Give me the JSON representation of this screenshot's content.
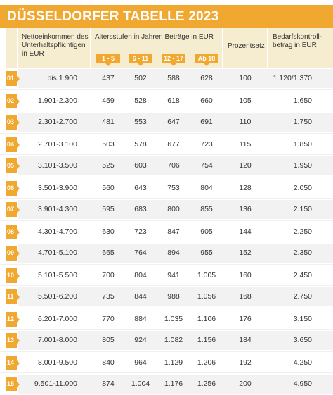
{
  "title": "DÜSSELDORFER TABELLE 2023",
  "header": {
    "income": "Nettoeinkommen des Unterhaltspflichtigen in EUR",
    "age_groups": "Altersstufen in Jahren Beträge in EUR",
    "ages": [
      "1 - 5",
      "6 - 11",
      "12 - 17",
      "Ab 18"
    ],
    "percent": "Prozentsatz",
    "requirement": "Bedarfskontroll-betrag in EUR"
  },
  "rows": [
    {
      "idx": "01",
      "income": "bis 1.900",
      "a1": "437",
      "a2": "502",
      "a3": "588",
      "a4": "628",
      "pct": "100",
      "req": "1.120/1.370"
    },
    {
      "idx": "02",
      "income": "1.901-2.300",
      "a1": "459",
      "a2": "528",
      "a3": "618",
      "a4": "660",
      "pct": "105",
      "req": "1.650"
    },
    {
      "idx": "03",
      "income": "2.301-2.700",
      "a1": "481",
      "a2": "553",
      "a3": "647",
      "a4": "691",
      "pct": "110",
      "req": "1.750"
    },
    {
      "idx": "04",
      "income": "2.701-3.100",
      "a1": "503",
      "a2": "578",
      "a3": "677",
      "a4": "723",
      "pct": "115",
      "req": "1.850"
    },
    {
      "idx": "05",
      "income": "3.101-3.500",
      "a1": "525",
      "a2": "603",
      "a3": "706",
      "a4": "754",
      "pct": "120",
      "req": "1.950"
    },
    {
      "idx": "06",
      "income": "3.501-3.900",
      "a1": "560",
      "a2": "643",
      "a3": "753",
      "a4": "804",
      "pct": "128",
      "req": "2.050"
    },
    {
      "idx": "07",
      "income": "3.901-4.300",
      "a1": "595",
      "a2": "683",
      "a3": "800",
      "a4": "855",
      "pct": "136",
      "req": "2.150"
    },
    {
      "idx": "08",
      "income": "4.301-4.700",
      "a1": "630",
      "a2": "723",
      "a3": "847",
      "a4": "905",
      "pct": "144",
      "req": "2.250"
    },
    {
      "idx": "09",
      "income": "4.701-5.100",
      "a1": "665",
      "a2": "764",
      "a3": "894",
      "a4": "955",
      "pct": "152",
      "req": "2.350"
    },
    {
      "idx": "10",
      "income": "5.101-5.500",
      "a1": "700",
      "a2": "804",
      "a3": "941",
      "a4": "1.005",
      "pct": "160",
      "req": "2.450"
    },
    {
      "idx": "11",
      "income": "5.501-6.200",
      "a1": "735",
      "a2": "844",
      "a3": "988",
      "a4": "1.056",
      "pct": "168",
      "req": "2.750"
    },
    {
      "idx": "12",
      "income": "6.201-7.000",
      "a1": "770",
      "a2": "884",
      "a3": "1.035",
      "a4": "1.106",
      "pct": "176",
      "req": "3.150"
    },
    {
      "idx": "13",
      "income": "7.001-8.000",
      "a1": "805",
      "a2": "924",
      "a3": "1.082",
      "a4": "1.156",
      "pct": "184",
      "req": "3.650"
    },
    {
      "idx": "14",
      "income": "8.001-9.500",
      "a1": "840",
      "a2": "964",
      "a3": "1.129",
      "a4": "1.206",
      "pct": "192",
      "req": "4.250"
    },
    {
      "idx": "15",
      "income": "9.501-11.000",
      "a1": "874",
      "a2": "1.004",
      "a3": "1.176",
      "a4": "1.256",
      "pct": "200",
      "req": "4.950"
    }
  ]
}
